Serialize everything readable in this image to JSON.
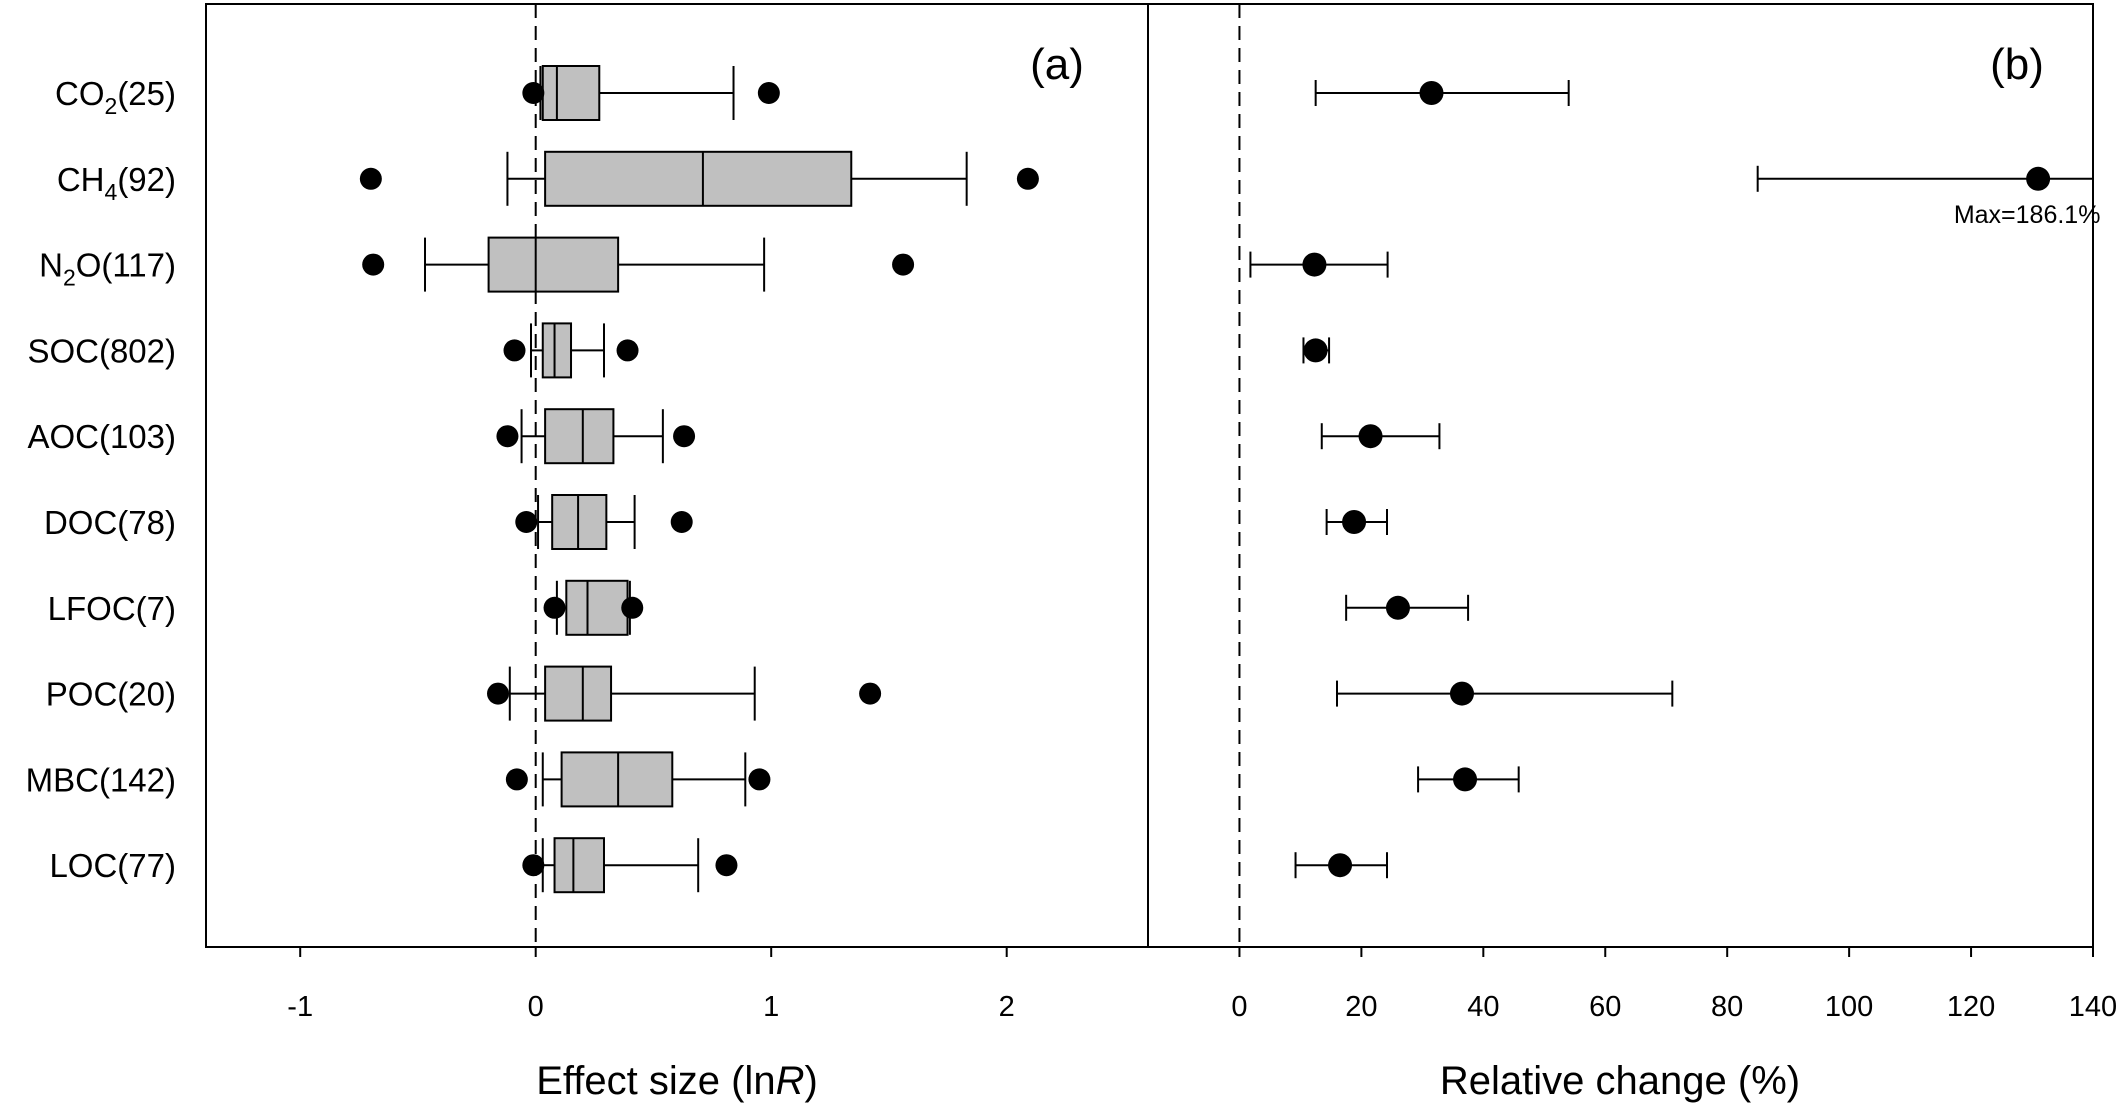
{
  "chart_data": [
    {
      "type": "box",
      "panel_label": "(a)",
      "xlabel_prefix": "Effect size (ln",
      "xlabel_italic": "R",
      "xlabel_suffix": ")",
      "xlim": [
        -1.4,
        2.6
      ],
      "xticks": [
        -1,
        0,
        1,
        2
      ],
      "reference_line": 0,
      "categories": [
        {
          "base": "CO",
          "sub": "2",
          "rest": "(25)"
        },
        {
          "base": "CH",
          "sub": "4",
          "rest": "(92)"
        },
        {
          "base": "N",
          "sub": "2",
          "rest": "O(117)"
        },
        {
          "base": "SOC(802)",
          "sub": "",
          "rest": ""
        },
        {
          "base": "AOC(103)",
          "sub": "",
          "rest": ""
        },
        {
          "base": "DOC(78)",
          "sub": "",
          "rest": ""
        },
        {
          "base": "LFOC(7)",
          "sub": "",
          "rest": ""
        },
        {
          "base": "POC(20)",
          "sub": "",
          "rest": ""
        },
        {
          "base": "MBC(142)",
          "sub": "",
          "rest": ""
        },
        {
          "base": "LOC(77)",
          "sub": "",
          "rest": ""
        }
      ],
      "boxes": [
        {
          "whisker_low": 0.02,
          "q1": 0.03,
          "median": 0.09,
          "q3": 0.27,
          "whisker_high": 0.84,
          "outliers": [
            -0.01,
            0.99
          ]
        },
        {
          "whisker_low": -0.12,
          "q1": 0.04,
          "median": 0.71,
          "q3": 1.34,
          "whisker_high": 1.83,
          "outliers": [
            -0.7,
            2.09
          ]
        },
        {
          "whisker_low": -0.47,
          "q1": -0.2,
          "median": 0.0,
          "q3": 0.35,
          "whisker_high": 0.97,
          "outliers": [
            -0.69,
            1.56
          ]
        },
        {
          "whisker_low": -0.02,
          "q1": 0.03,
          "median": 0.08,
          "q3": 0.15,
          "whisker_high": 0.29,
          "outliers": [
            -0.09,
            0.39
          ]
        },
        {
          "whisker_low": -0.06,
          "q1": 0.04,
          "median": 0.2,
          "q3": 0.33,
          "whisker_high": 0.54,
          "outliers": [
            -0.12,
            0.63
          ]
        },
        {
          "whisker_low": 0.01,
          "q1": 0.07,
          "median": 0.18,
          "q3": 0.3,
          "whisker_high": 0.42,
          "outliers": [
            -0.04,
            0.62
          ]
        },
        {
          "whisker_low": 0.09,
          "q1": 0.13,
          "median": 0.22,
          "q3": 0.39,
          "whisker_high": 0.4,
          "outliers": [
            0.08,
            0.41
          ]
        },
        {
          "whisker_low": -0.11,
          "q1": 0.04,
          "median": 0.2,
          "q3": 0.32,
          "whisker_high": 0.93,
          "outliers": [
            -0.16,
            1.42
          ]
        },
        {
          "whisker_low": 0.03,
          "q1": 0.11,
          "median": 0.35,
          "q3": 0.58,
          "whisker_high": 0.89,
          "outliers": [
            -0.08,
            0.95
          ]
        },
        {
          "whisker_low": 0.03,
          "q1": 0.08,
          "median": 0.16,
          "q3": 0.29,
          "whisker_high": 0.69,
          "outliers": [
            -0.01,
            0.81
          ]
        }
      ]
    },
    {
      "type": "errorbar",
      "panel_label": "(b)",
      "xlabel": "Relative change (%)",
      "xlim": [
        -15,
        140
      ],
      "xticks": [
        0,
        20,
        40,
        60,
        80,
        100,
        120,
        140
      ],
      "reference_line": 0,
      "points": [
        {
          "mean": 31.5,
          "low": 12.5,
          "high": 54
        },
        {
          "mean": 131,
          "low": 85,
          "high": 140,
          "annotation": "Max=186.1%"
        },
        {
          "mean": 12.3,
          "low": 1.8,
          "high": 24.3
        },
        {
          "mean": 12.5,
          "low": 10.5,
          "high": 14.7
        },
        {
          "mean": 21.5,
          "low": 13.5,
          "high": 32.8
        },
        {
          "mean": 18.8,
          "low": 14.3,
          "high": 24.2
        },
        {
          "mean": 26,
          "low": 17.5,
          "high": 37.5
        },
        {
          "mean": 36.5,
          "low": 16,
          "high": 71
        },
        {
          "mean": 37,
          "low": 29.3,
          "high": 45.8
        },
        {
          "mean": 16.5,
          "low": 9.2,
          "high": 24.2
        }
      ]
    }
  ]
}
